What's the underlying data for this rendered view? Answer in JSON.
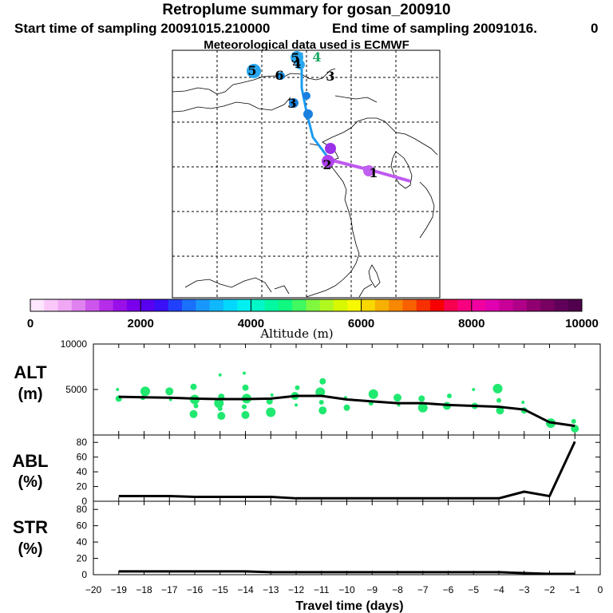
{
  "header": {
    "title": "Retroplume summary for gosan_200910",
    "start": "Start time of sampling 20091015.210000",
    "end": "End time of sampling 20091016.",
    "end_suffix": "0",
    "met": "Meteorological data used is ECMWF"
  },
  "colorbar": {
    "label": "Altitude (m)",
    "ticks": [
      "0",
      "2000",
      "4000",
      "6000",
      "8000",
      "10000"
    ],
    "colors": [
      "#ffe6ff",
      "#f9c8f9",
      "#f0a8f5",
      "#e082f0",
      "#cc55ec",
      "#b52de8",
      "#9a10e8",
      "#7a00ec",
      "#5800f0",
      "#3a10f8",
      "#2040ff",
      "#1a70ff",
      "#1898ff",
      "#10b8ff",
      "#00d8ff",
      "#00f0f0",
      "#00f8c8",
      "#00f8a0",
      "#10f880",
      "#40f860",
      "#80f840",
      "#b0f820",
      "#d8f800",
      "#f8f800",
      "#f8d800",
      "#f8b000",
      "#f88800",
      "#f86000",
      "#f83000",
      "#f80000",
      "#f80050",
      "#f80080",
      "#f000a0",
      "#e000b0",
      "#c80098",
      "#b00088",
      "#900070",
      "#780060",
      "#60005a",
      "#50004c"
    ]
  },
  "map": {
    "trajectory_labels": [
      {
        "text": "1",
        "color": "#000000"
      },
      {
        "text": "2",
        "color": "#000000"
      },
      {
        "text": "3",
        "color": "#000000"
      },
      {
        "text": "3",
        "color": "#000000"
      },
      {
        "text": "4",
        "color": "#000000"
      },
      {
        "text": "4",
        "color": "#1aa860"
      },
      {
        "text": "5",
        "color": "#000000"
      },
      {
        "text": "5",
        "color": "#000000"
      },
      {
        "text": "6",
        "color": "#000000"
      }
    ]
  },
  "chart_data": [
    {
      "type": "line",
      "panel": "ALT",
      "ylabel": "ALT",
      "yunit": "(m)",
      "ylim": [
        0,
        10000
      ],
      "yticks": [
        0,
        5000,
        10000
      ],
      "x": [
        -19,
        -18,
        -17,
        -16,
        -15,
        -14,
        -13,
        -12,
        -11,
        -10,
        -9,
        -8,
        -7,
        -6,
        -5,
        -4,
        -3,
        -2,
        -1
      ],
      "values": [
        4200,
        4150,
        4100,
        4000,
        3950,
        3950,
        4000,
        4300,
        4300,
        3900,
        3700,
        3500,
        3500,
        3300,
        3200,
        3100,
        2800,
        1400,
        1000
      ],
      "plume_points": [
        {
          "x": -19,
          "y": 5000
        },
        {
          "x": -19,
          "y": 4000
        },
        {
          "x": -18,
          "y": 4800
        },
        {
          "x": -18,
          "y": 4100
        },
        {
          "x": -17,
          "y": 4800
        },
        {
          "x": -17,
          "y": 3900
        },
        {
          "x": -16,
          "y": 5300
        },
        {
          "x": -16,
          "y": 3900
        },
        {
          "x": -16,
          "y": 3200
        },
        {
          "x": -16,
          "y": 2300
        },
        {
          "x": -15,
          "y": 6600
        },
        {
          "x": -15,
          "y": 4200
        },
        {
          "x": -15,
          "y": 3500
        },
        {
          "x": -15,
          "y": 2900
        },
        {
          "x": -15,
          "y": 2100
        },
        {
          "x": -14,
          "y": 6800
        },
        {
          "x": -14,
          "y": 5200
        },
        {
          "x": -14,
          "y": 4000
        },
        {
          "x": -14,
          "y": 3100
        },
        {
          "x": -14,
          "y": 2200
        },
        {
          "x": -13,
          "y": 4400
        },
        {
          "x": -13,
          "y": 3700
        },
        {
          "x": -13,
          "y": 2500
        },
        {
          "x": -12,
          "y": 5200
        },
        {
          "x": -12,
          "y": 4300
        },
        {
          "x": -12,
          "y": 3300
        },
        {
          "x": -11,
          "y": 5900
        },
        {
          "x": -11,
          "y": 4700
        },
        {
          "x": -11,
          "y": 3600
        },
        {
          "x": -11,
          "y": 2700
        },
        {
          "x": -10,
          "y": 4100
        },
        {
          "x": -10,
          "y": 3000
        },
        {
          "x": -9,
          "y": 4500
        },
        {
          "x": -9,
          "y": 3500
        },
        {
          "x": -8,
          "y": 4100
        },
        {
          "x": -8,
          "y": 3300
        },
        {
          "x": -7,
          "y": 4000
        },
        {
          "x": -7,
          "y": 3000
        },
        {
          "x": -6,
          "y": 4300
        },
        {
          "x": -6,
          "y": 3200
        },
        {
          "x": -5,
          "y": 5000
        },
        {
          "x": -5,
          "y": 3200
        },
        {
          "x": -4,
          "y": 5100
        },
        {
          "x": -4,
          "y": 3800
        },
        {
          "x": -4,
          "y": 2700
        },
        {
          "x": -3,
          "y": 3600
        },
        {
          "x": -3,
          "y": 2700
        },
        {
          "x": -2,
          "y": 1300
        },
        {
          "x": -1,
          "y": 1500
        },
        {
          "x": -1,
          "y": 700
        }
      ]
    },
    {
      "type": "line",
      "panel": "ABL",
      "ylabel": "ABL",
      "yunit": "(%)",
      "ylim": [
        0,
        90
      ],
      "yticks": [
        0,
        20,
        40,
        60,
        80
      ],
      "x": [
        -19,
        -18,
        -17,
        -16,
        -15,
        -14,
        -13,
        -12,
        -11,
        -10,
        -9,
        -8,
        -7,
        -6,
        -5,
        -4,
        -3,
        -2,
        -1
      ],
      "values": [
        7,
        7,
        7,
        6,
        6,
        6,
        6,
        4,
        4,
        4,
        4,
        4,
        4,
        4,
        4,
        4,
        13,
        7,
        81
      ]
    },
    {
      "type": "line",
      "panel": "STR",
      "ylabel": "STR",
      "yunit": "(%)",
      "ylim": [
        0,
        90
      ],
      "yticks": [
        0,
        20,
        40,
        60,
        80
      ],
      "x": [
        -19,
        -18,
        -17,
        -16,
        -15,
        -14,
        -13,
        -12,
        -11,
        -10,
        -9,
        -8,
        -7,
        -6,
        -5,
        -4,
        -3,
        -2,
        -1
      ],
      "values": [
        4,
        4,
        4,
        4,
        4,
        4,
        3,
        3,
        3,
        3,
        3,
        3,
        3,
        3,
        3,
        3,
        2,
        1,
        1
      ],
      "xlabel": "Travel time (days)",
      "xticks": [
        -20,
        -19,
        -18,
        -17,
        -16,
        -15,
        -14,
        -13,
        -12,
        -11,
        -10,
        -9,
        -8,
        -7,
        -6,
        -5,
        -4,
        -3,
        -2,
        -1,
        0
      ],
      "xlim": [
        -20,
        0
      ]
    }
  ]
}
